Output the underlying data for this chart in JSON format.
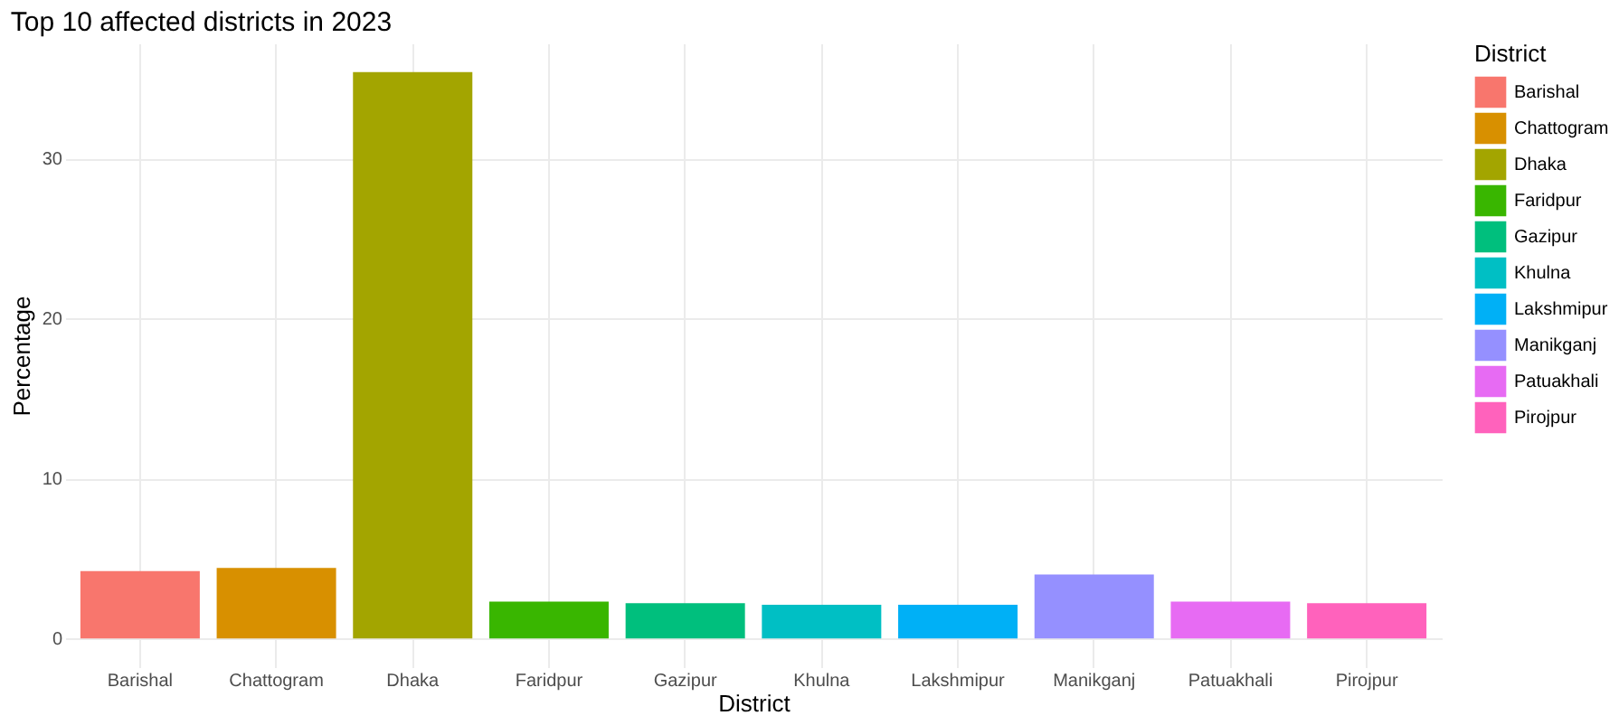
{
  "chart_data": {
    "type": "bar",
    "title": "Top 10 affected districts in 2023",
    "xlabel": "District",
    "ylabel": "Percentage",
    "legend_title": "District",
    "categories": [
      "Barishal",
      "Chattogram",
      "Dhaka",
      "Faridpur",
      "Gazipur",
      "Khulna",
      "Lakshmipur",
      "Manikganj",
      "Patuakhali",
      "Pirojpur"
    ],
    "series": [
      {
        "name": "Barishal",
        "color": "#f8766d",
        "values": [
          4.2,
          null,
          null,
          null,
          null,
          null,
          null,
          null,
          null,
          null
        ]
      },
      {
        "name": "Chattogram",
        "color": "#d89000",
        "values": [
          null,
          4.4,
          null,
          null,
          null,
          null,
          null,
          null,
          null,
          null
        ]
      },
      {
        "name": "Dhaka",
        "color": "#a3a500",
        "values": [
          null,
          null,
          35.4,
          null,
          null,
          null,
          null,
          null,
          null,
          null
        ]
      },
      {
        "name": "Faridpur",
        "color": "#39b600",
        "values": [
          null,
          null,
          null,
          2.3,
          null,
          null,
          null,
          null,
          null,
          null
        ]
      },
      {
        "name": "Gazipur",
        "color": "#00bf7d",
        "values": [
          null,
          null,
          null,
          null,
          2.2,
          null,
          null,
          null,
          null,
          null
        ]
      },
      {
        "name": "Khulna",
        "color": "#00bfc4",
        "values": [
          null,
          null,
          null,
          null,
          null,
          2.1,
          null,
          null,
          null,
          null
        ]
      },
      {
        "name": "Lakshmipur",
        "color": "#00b0f6",
        "values": [
          null,
          null,
          null,
          null,
          null,
          null,
          2.1,
          null,
          null,
          null
        ]
      },
      {
        "name": "Manikganj",
        "color": "#9590ff",
        "values": [
          null,
          null,
          null,
          null,
          null,
          null,
          null,
          4.0,
          null,
          null
        ]
      },
      {
        "name": "Patuakhali",
        "color": "#e76bf3",
        "values": [
          null,
          null,
          null,
          null,
          null,
          null,
          null,
          null,
          2.3,
          null
        ]
      },
      {
        "name": "Pirojpur",
        "color": "#ff62bc",
        "values": [
          null,
          null,
          null,
          null,
          null,
          null,
          null,
          null,
          null,
          2.2
        ]
      }
    ],
    "ylim": [
      -1.8,
      37.2
    ],
    "yticks": [
      0,
      10,
      20,
      30
    ],
    "grid": true,
    "legend": "right"
  }
}
